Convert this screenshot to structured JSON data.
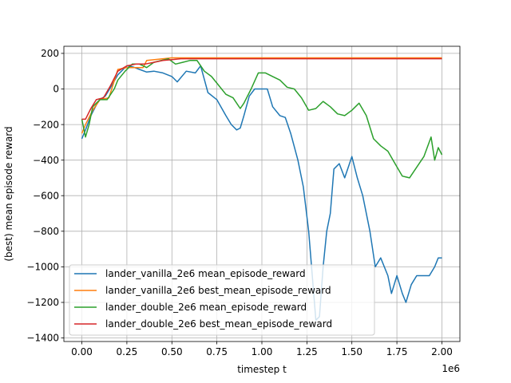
{
  "chart_data": {
    "type": "line",
    "title": "",
    "xlabel": "timestep t",
    "ylabel": "(best) mean episode reward",
    "x_offset_label": "1e6",
    "xlim": [
      -0.1,
      2.1
    ],
    "ylim": [
      -1420,
      240
    ],
    "grid": true,
    "legend_position": "lower-left",
    "x_tick_labels": [
      "0.00",
      "0.25",
      "0.50",
      "0.75",
      "1.00",
      "1.25",
      "1.50",
      "1.75",
      "2.00"
    ],
    "y_tick_labels": [
      "200",
      "0",
      "−200",
      "−400",
      "−600",
      "−800",
      "−1000",
      "−1200",
      "−1400"
    ],
    "x_ticks": [
      0.0,
      0.25,
      0.5,
      0.75,
      1.0,
      1.25,
      1.5,
      1.75,
      2.0
    ],
    "y_ticks": [
      200,
      0,
      -200,
      -400,
      -600,
      -800,
      -1000,
      -1200,
      -1400
    ],
    "series": [
      {
        "name": "lander_vanilla_2e6 mean_episode_reward",
        "color": "#1f77b4",
        "x": [
          0.0,
          0.02,
          0.05,
          0.08,
          0.1,
          0.13,
          0.16,
          0.2,
          0.22,
          0.25,
          0.28,
          0.32,
          0.36,
          0.4,
          0.45,
          0.5,
          0.53,
          0.58,
          0.63,
          0.66,
          0.7,
          0.75,
          0.8,
          0.83,
          0.86,
          0.88,
          0.9,
          0.93,
          0.96,
          1.0,
          1.03,
          1.06,
          1.1,
          1.13,
          1.16,
          1.2,
          1.23,
          1.26,
          1.28,
          1.3,
          1.32,
          1.34,
          1.36,
          1.38,
          1.4,
          1.43,
          1.46,
          1.5,
          1.53,
          1.56,
          1.6,
          1.63,
          1.66,
          1.7,
          1.72,
          1.75,
          1.78,
          1.8,
          1.83,
          1.86,
          1.9,
          1.93,
          1.96,
          1.98,
          2.0
        ],
        "y": [
          -280,
          -230,
          -150,
          -90,
          -60,
          -40,
          10,
          80,
          100,
          130,
          125,
          110,
          95,
          100,
          90,
          70,
          40,
          100,
          90,
          130,
          -20,
          -60,
          -150,
          -200,
          -230,
          -220,
          -150,
          -40,
          0,
          0,
          0,
          -100,
          -150,
          -160,
          -250,
          -400,
          -550,
          -800,
          -1050,
          -1300,
          -1280,
          -1000,
          -800,
          -700,
          -450,
          -420,
          -500,
          -380,
          -500,
          -600,
          -800,
          -1000,
          -950,
          -1050,
          -1150,
          -1050,
          -1150,
          -1200,
          -1100,
          -1050,
          -1050,
          -1050,
          -1000,
          -950,
          -950
        ]
      },
      {
        "name": "lander_vanilla_2e6 best_mean_episode_reward",
        "color": "#ff7f0e",
        "x": [
          0.0,
          0.02,
          0.06,
          0.1,
          0.15,
          0.2,
          0.25,
          0.34,
          0.36,
          0.5,
          2.0
        ],
        "y": [
          -250,
          -200,
          -120,
          -60,
          -50,
          110,
          120,
          120,
          160,
          175,
          175
        ]
      },
      {
        "name": "lander_double_2e6 mean_episode_reward",
        "color": "#2ca02c",
        "x": [
          0.0,
          0.02,
          0.04,
          0.06,
          0.1,
          0.14,
          0.18,
          0.2,
          0.24,
          0.28,
          0.32,
          0.36,
          0.4,
          0.44,
          0.48,
          0.52,
          0.56,
          0.6,
          0.64,
          0.68,
          0.72,
          0.76,
          0.8,
          0.84,
          0.88,
          0.9,
          0.94,
          0.98,
          1.02,
          1.06,
          1.1,
          1.14,
          1.18,
          1.22,
          1.26,
          1.3,
          1.34,
          1.38,
          1.42,
          1.46,
          1.5,
          1.54,
          1.58,
          1.62,
          1.66,
          1.7,
          1.74,
          1.78,
          1.82,
          1.86,
          1.9,
          1.94,
          1.96,
          1.98,
          2.0
        ],
        "y": [
          -170,
          -270,
          -200,
          -100,
          -60,
          -60,
          0,
          50,
          100,
          140,
          140,
          120,
          150,
          160,
          170,
          140,
          150,
          160,
          160,
          100,
          70,
          20,
          -30,
          -50,
          -110,
          -80,
          0,
          90,
          90,
          70,
          50,
          10,
          0,
          -50,
          -120,
          -110,
          -70,
          -100,
          -140,
          -150,
          -120,
          -80,
          -150,
          -280,
          -320,
          -350,
          -420,
          -490,
          -500,
          -440,
          -380,
          -270,
          -400,
          -330,
          -370
        ]
      },
      {
        "name": "lander_double_2e6 best_mean_episode_reward",
        "color": "#d62728",
        "x": [
          0.0,
          0.02,
          0.05,
          0.08,
          0.12,
          0.16,
          0.2,
          0.25,
          0.3,
          0.35,
          0.4,
          0.45,
          0.5,
          0.55,
          0.6,
          0.65,
          2.0
        ],
        "y": [
          -170,
          -170,
          -110,
          -60,
          -50,
          20,
          100,
          130,
          140,
          140,
          150,
          160,
          165,
          170,
          170,
          170,
          170
        ]
      }
    ]
  }
}
